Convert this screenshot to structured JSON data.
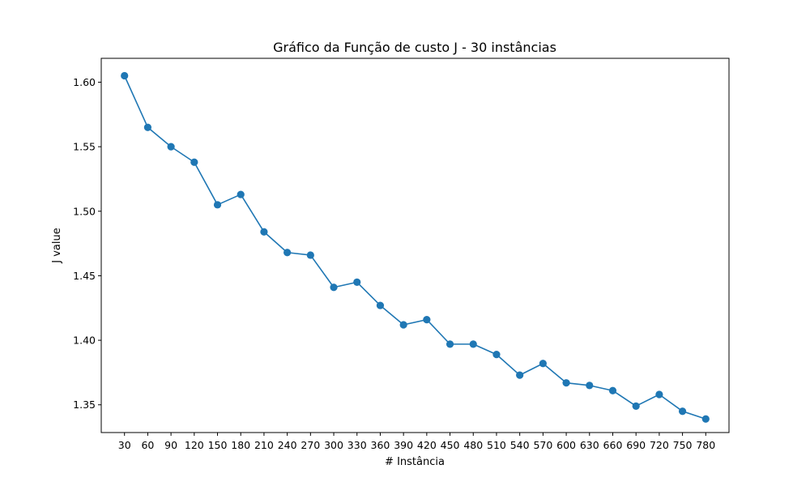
{
  "chart_data": {
    "type": "line",
    "title": "Gráfico da Função de custo J - 30 instâncias",
    "xlabel": "# Instância",
    "ylabel": "J value",
    "x": [
      30,
      60,
      90,
      120,
      150,
      180,
      210,
      240,
      270,
      300,
      330,
      360,
      390,
      420,
      450,
      480,
      510,
      540,
      570,
      600,
      630,
      660,
      690,
      720,
      750,
      780
    ],
    "series": [
      {
        "color": "#1f77b4",
        "marker": "circle",
        "values": [
          1.605,
          1.565,
          1.55,
          1.538,
          1.505,
          1.513,
          1.484,
          1.468,
          1.466,
          1.441,
          1.445,
          1.427,
          1.412,
          1.416,
          1.397,
          1.397,
          1.389,
          1.373,
          1.382,
          1.367,
          1.365,
          1.361,
          1.349,
          1.358,
          1.345,
          1.339
        ]
      }
    ],
    "yticks": [
      "1.35",
      "1.40",
      "1.45",
      "1.50",
      "1.55",
      "1.60"
    ],
    "xticks": [
      "30",
      "60",
      "90",
      "120",
      "150",
      "180",
      "210",
      "240",
      "270",
      "300",
      "330",
      "360",
      "390",
      "420",
      "450",
      "480",
      "510",
      "540",
      "570",
      "600",
      "630",
      "660",
      "690",
      "720",
      "750",
      "780"
    ],
    "ylim": [
      1.3285,
      1.6185
    ],
    "grid": false,
    "legend": "none"
  }
}
